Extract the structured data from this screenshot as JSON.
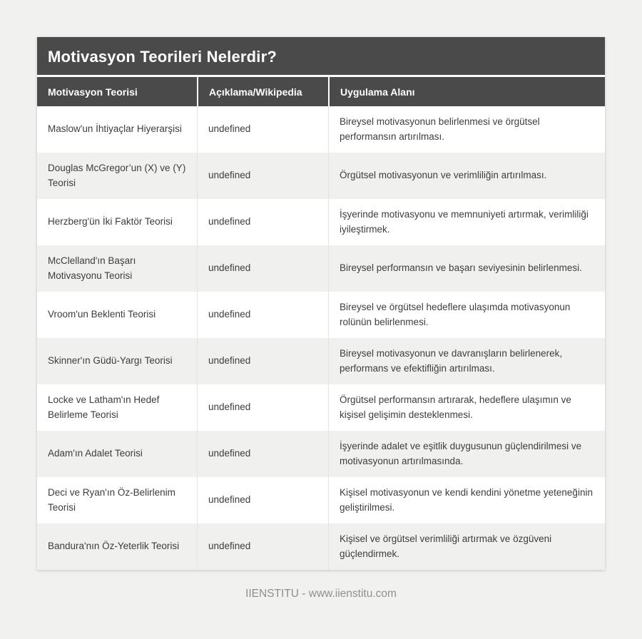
{
  "page": {
    "footer_text": "IIENSTITU - www.iienstitu.com"
  },
  "colors": {
    "page_bg": "#f1f1ef",
    "header_bg": "#4a4a4a",
    "header_text": "#ffffff",
    "row_bg": "#ffffff",
    "row_alt_bg": "#f0f0ee",
    "body_text": "#3d3d3d",
    "cell_border": "#e4e4e2",
    "footer_text_color": "#8f8f8f"
  },
  "chart_data": {
    "type": "table",
    "title": "Motivasyon Teorileri Nelerdir?",
    "columns": [
      "Motivasyon Teorisi",
      "Açıklama/Wikipedia",
      "Uygulama Alanı"
    ],
    "rows": [
      [
        "Maslow'un İhtiyaçlar Hiyerarşisi",
        "undefined",
        "Bireysel motivasyonun belirlenmesi ve örgütsel performansın artırılması."
      ],
      [
        "Douglas McGregor’un (X) ve (Y) Teorisi",
        "undefined",
        "Örgütsel motivasyonun ve verimliliğin artırılması."
      ],
      [
        "Herzberg'ün İki Faktör Teorisi",
        "undefined",
        "İşyerinde motivasyonu ve memnuniyeti artırmak, verimliliği iyileştirmek."
      ],
      [
        "McClelland'ın Başarı Motivasyonu Teorisi",
        "undefined",
        "Bireysel performansın ve başarı seviyesinin belirlenmesi."
      ],
      [
        "Vroom'un Beklenti Teorisi",
        "undefined",
        "Bireysel ve örgütsel hedeflere ulaşımda motivasyonun rolünün belirlenmesi."
      ],
      [
        "Skinner'ın Güdü-Yargı Teorisi",
        "undefined",
        "Bireysel motivasyonun ve davranışların belirlenerek, performans ve efektifliğin artırılması."
      ],
      [
        "Locke ve Latham'ın Hedef Belirleme Teorisi",
        "undefined",
        "Örgütsel performansın artırarak, hedeflere ulaşımın ve kişisel gelişimin desteklenmesi."
      ],
      [
        "Adam'ın Adalet Teorisi",
        "undefined",
        "İşyerinde adalet ve eşitlik duygusunun güçlendirilmesi ve motivasyonun artırılmasında."
      ],
      [
        "Deci ve Ryan'ın Öz-Belirlenim Teorisi",
        "undefined",
        "Kişisel motivasyonun ve kendi kendini yönetme yeteneğinin geliştirilmesi."
      ],
      [
        "Bandura'nın Öz-Yeterlik Teorisi",
        "undefined",
        "Kişisel ve örgütsel verimliliği artırmak ve özgüveni güçlendirmek."
      ]
    ]
  }
}
